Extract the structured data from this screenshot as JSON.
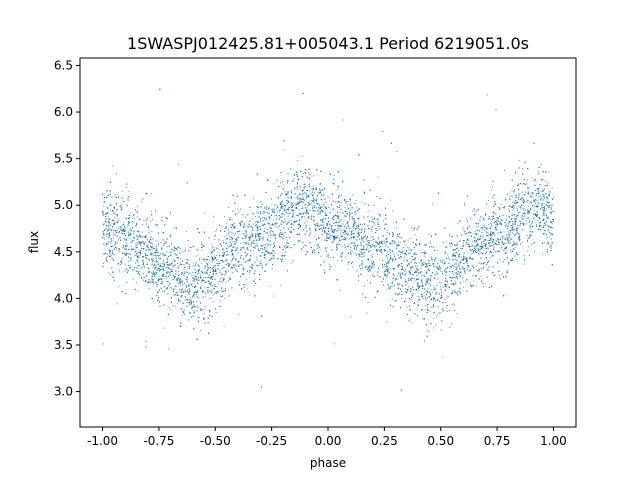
{
  "chart_data": {
    "type": "scatter",
    "title": "1SWASPJ012425.81+005043.1 Period 6219051.0s",
    "xlabel": "phase",
    "ylabel": "flux",
    "xlim": [
      -1.1,
      1.1
    ],
    "ylim": [
      2.62,
      6.58
    ],
    "xticks": [
      "-1.00",
      "-0.75",
      "-0.50",
      "-0.25",
      "0.00",
      "0.25",
      "0.50",
      "0.75",
      "1.00"
    ],
    "xtick_values": [
      -1.0,
      -0.75,
      -0.5,
      -0.25,
      0.0,
      0.25,
      0.5,
      0.75,
      1.0
    ],
    "yticks": [
      "3.0",
      "3.5",
      "4.0",
      "4.5",
      "5.0",
      "5.5",
      "6.0",
      "6.5"
    ],
    "ytick_values": [
      3.0,
      3.5,
      4.0,
      4.5,
      5.0,
      5.5,
      6.0,
      6.5
    ],
    "grid": false,
    "marker_color": "#1f77b4",
    "series": [
      {
        "phase_profile": [
          [
            -1.0,
            4.78
          ],
          [
            -0.95,
            4.7
          ],
          [
            -0.9,
            4.62
          ],
          [
            -0.85,
            4.55
          ],
          [
            -0.8,
            4.5
          ],
          [
            -0.75,
            4.4
          ],
          [
            -0.7,
            4.3
          ],
          [
            -0.65,
            4.2
          ],
          [
            -0.6,
            4.17
          ],
          [
            -0.55,
            4.2
          ],
          [
            -0.5,
            4.3
          ],
          [
            -0.45,
            4.45
          ],
          [
            -0.4,
            4.55
          ],
          [
            -0.35,
            4.6
          ],
          [
            -0.3,
            4.65
          ],
          [
            -0.25,
            4.75
          ],
          [
            -0.2,
            4.85
          ],
          [
            -0.15,
            4.92
          ],
          [
            -0.1,
            4.98
          ],
          [
            -0.05,
            4.92
          ],
          [
            0.0,
            4.8
          ],
          [
            0.05,
            4.75
          ],
          [
            0.1,
            4.7
          ],
          [
            0.15,
            4.62
          ],
          [
            0.2,
            4.55
          ],
          [
            0.25,
            4.5
          ],
          [
            0.3,
            4.4
          ],
          [
            0.35,
            4.3
          ],
          [
            0.4,
            4.2
          ],
          [
            0.45,
            4.17
          ],
          [
            0.5,
            4.2
          ],
          [
            0.55,
            4.3
          ],
          [
            0.6,
            4.45
          ],
          [
            0.65,
            4.55
          ],
          [
            0.7,
            4.6
          ],
          [
            0.75,
            4.65
          ],
          [
            0.8,
            4.75
          ],
          [
            0.85,
            4.85
          ],
          [
            0.9,
            4.92
          ],
          [
            0.95,
            4.98
          ],
          [
            1.0,
            4.8
          ]
        ],
        "scatter_sigma": 0.22,
        "point_count": 14000
      }
    ]
  }
}
